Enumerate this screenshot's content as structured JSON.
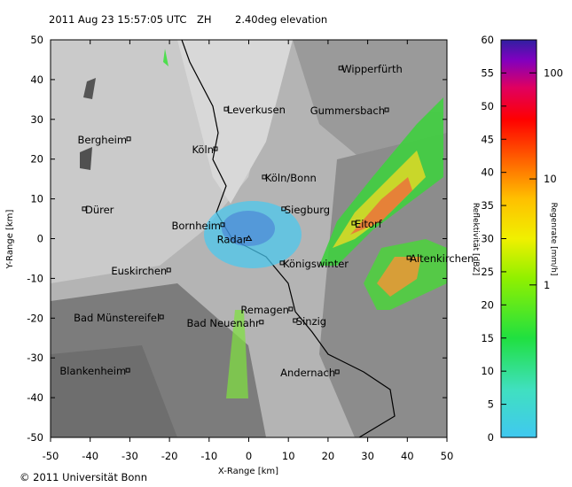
{
  "chart_data": {
    "type": "scatter",
    "title": [
      "2011 Aug 23 15:57:05 UTC",
      "ZH",
      "2.40deg elevation"
    ],
    "xlabel": "X-Range [km]",
    "ylabel": "Y-Range [km]",
    "xlim": [
      -50,
      50
    ],
    "ylim": [
      -50,
      50
    ],
    "xticks": [
      -50,
      -40,
      -30,
      -20,
      -10,
      0,
      10,
      20,
      30,
      40,
      50
    ],
    "yticks": [
      -50,
      -40,
      -30,
      -20,
      -10,
      0,
      10,
      20,
      30,
      40,
      50
    ],
    "labels": [
      "Wipperfürth",
      "Leverkusen",
      "Gummersbach",
      "Bergheim",
      "Köln",
      "Köln/Bonn",
      "Dürer",
      "Siegburg",
      "Eitorf",
      "Bornheim",
      "Radar",
      "Altenkirchen",
      "Königswinter",
      "Euskirchen",
      "Remagen",
      "Bad Münstereifel",
      "Sinzig",
      "Bad Neuenahr",
      "Blankenheim",
      "Andernach"
    ],
    "x": [
      23.2,
      -5.7,
      34.8,
      -30.3,
      -8.4,
      3.9,
      -41.5,
      8.8,
      26.5,
      -6.6,
      0,
      40.4,
      8.4,
      -20.2,
      10.6,
      -22.0,
      11.7,
      3.2,
      -30.5,
      22.3
    ],
    "values": [
      42.9,
      32.6,
      32.4,
      25.1,
      22.6,
      15.5,
      7.5,
      7.5,
      3.9,
      3.5,
      0,
      -4.8,
      -6.1,
      -7.9,
      -17.7,
      -19.7,
      -20.6,
      -21.0,
      -33.1,
      -33.5
    ],
    "colorbar": {
      "label": "Reflektivität [dBZ]",
      "lim": [
        0,
        60
      ],
      "ticks": [
        0,
        5,
        10,
        15,
        20,
        25,
        30,
        35,
        40,
        45,
        50,
        55,
        60
      ],
      "rain_label": "Regenrate [mm/h]",
      "rain_ticks": [
        1,
        10,
        100
      ]
    },
    "copyright": "© 2011 Universität Bonn"
  }
}
